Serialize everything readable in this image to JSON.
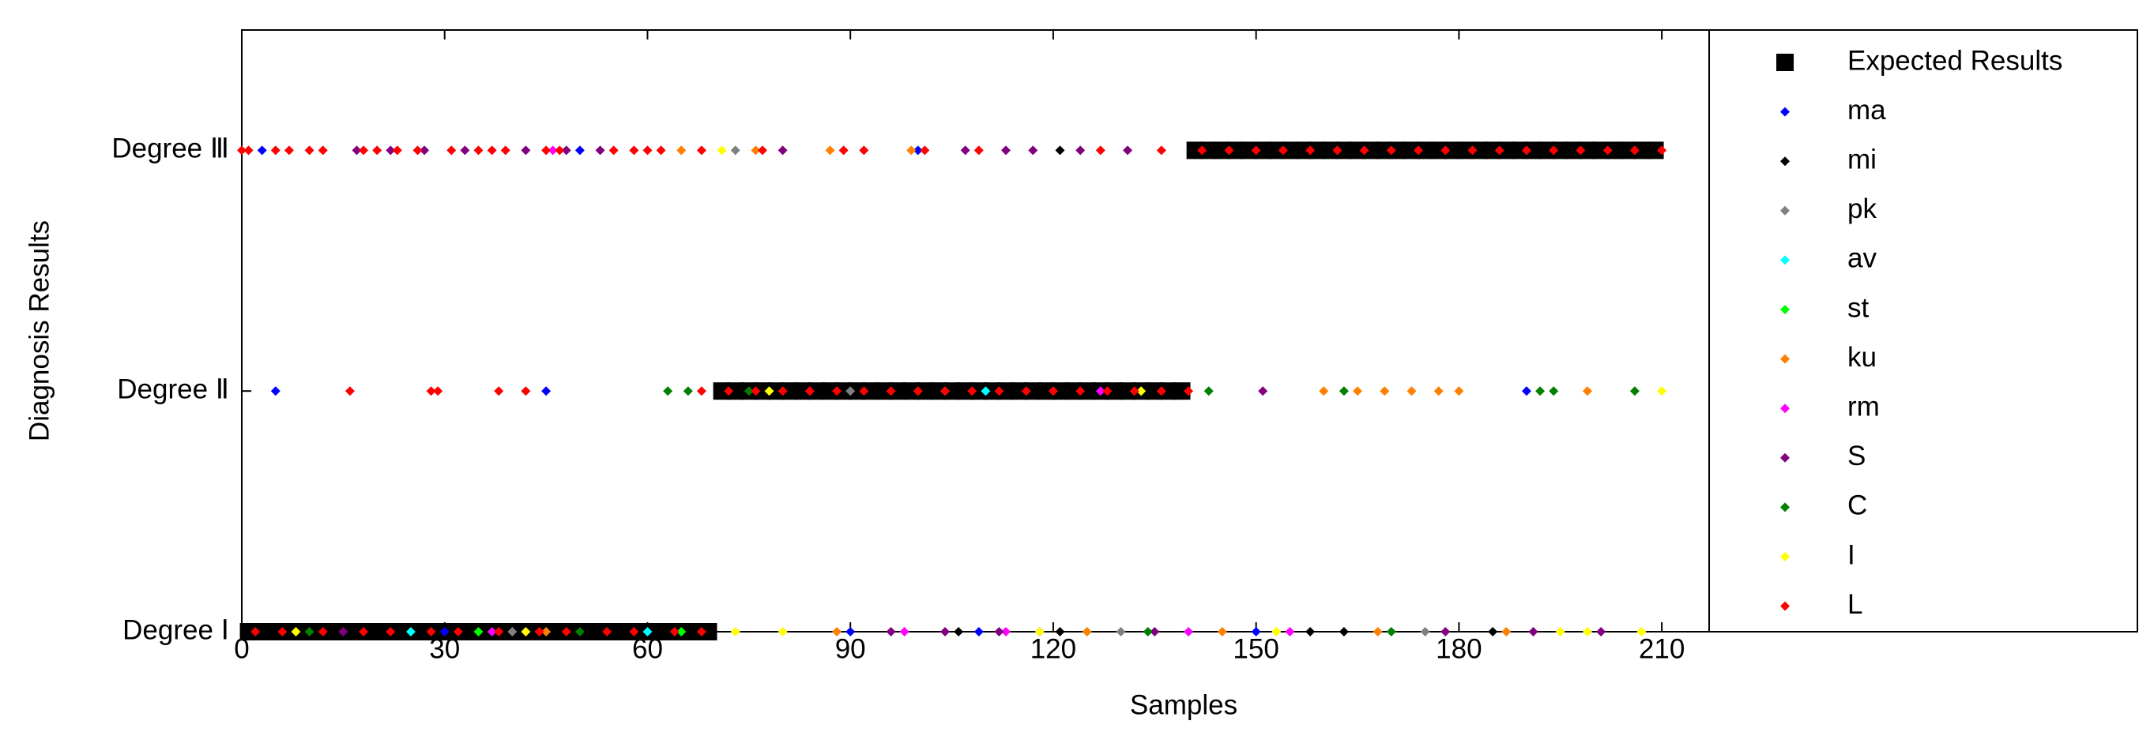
{
  "chart_data": {
    "type": "scatter",
    "xlabel": "Samples",
    "ylabel": "Diagnosis Results",
    "xlim": [
      0,
      217
    ],
    "xticks": [
      0,
      30,
      60,
      90,
      120,
      150,
      180,
      210
    ],
    "ylim": [
      1,
      3.5
    ],
    "yticks": [
      {
        "value": 1,
        "label": "Degree Ⅰ"
      },
      {
        "value": 2,
        "label": "Degree Ⅱ"
      },
      {
        "value": 3,
        "label": "Degree Ⅲ"
      }
    ],
    "legend": "outside-right",
    "series": [
      {
        "name": "Expected Results",
        "color": "#000000",
        "marker": "square",
        "x": [
          1,
          3,
          5,
          7,
          9,
          11,
          13,
          15,
          17,
          19,
          21,
          23,
          25,
          27,
          29,
          31,
          33,
          35,
          37,
          39,
          41,
          43,
          45,
          47,
          49,
          51,
          53,
          55,
          57,
          59,
          61,
          63,
          65,
          67,
          69,
          71,
          73,
          75,
          77,
          79,
          81,
          83,
          85,
          87,
          89,
          91,
          93,
          95,
          97,
          99,
          101,
          103,
          105,
          107,
          109,
          111,
          113,
          115,
          117,
          119,
          121,
          123,
          125,
          127,
          129,
          131,
          133,
          135,
          137,
          139,
          141,
          143,
          145,
          147,
          149,
          151,
          153,
          155,
          157,
          159,
          161,
          163,
          165,
          167,
          169,
          171,
          173,
          175,
          177,
          179,
          181,
          183,
          185,
          187,
          189,
          191,
          193,
          195,
          197,
          199,
          201,
          203,
          205,
          207,
          209
        ],
        "values": [
          1,
          1,
          1,
          1,
          1,
          1,
          1,
          1,
          1,
          1,
          1,
          1,
          1,
          1,
          1,
          1,
          1,
          1,
          1,
          1,
          1,
          1,
          1,
          1,
          1,
          1,
          1,
          1,
          1,
          1,
          1,
          1,
          1,
          1,
          1,
          2,
          2,
          2,
          2,
          2,
          2,
          2,
          2,
          2,
          2,
          2,
          2,
          2,
          2,
          2,
          2,
          2,
          2,
          2,
          2,
          2,
          2,
          2,
          2,
          2,
          2,
          2,
          2,
          2,
          2,
          2,
          2,
          2,
          2,
          2,
          3,
          3,
          3,
          3,
          3,
          3,
          3,
          3,
          3,
          3,
          3,
          3,
          3,
          3,
          3,
          3,
          3,
          3,
          3,
          3,
          3,
          3,
          3,
          3,
          3,
          3,
          3,
          3,
          3,
          3,
          3,
          3,
          3,
          3,
          3
        ]
      },
      {
        "name": "ma",
        "color": "#0000ff",
        "marker": "diamond",
        "x": [
          5,
          45,
          3,
          50,
          90,
          109,
          118,
          190,
          30,
          100,
          150
        ],
        "values": [
          2,
          2,
          3,
          3,
          1,
          1,
          1,
          2,
          1,
          3,
          1
        ]
      },
      {
        "name": "mi",
        "color": "#000000",
        "marker": "diamond",
        "x": [
          106,
          121,
          121,
          158,
          163,
          185,
          20,
          95,
          55
        ],
        "values": [
          1,
          1,
          3,
          1,
          1,
          1,
          1,
          2,
          1
        ]
      },
      {
        "name": "pk",
        "color": "#808080",
        "marker": "diamond",
        "x": [
          73,
          130,
          90,
          40,
          175
        ],
        "values": [
          3,
          1,
          2,
          1,
          1
        ]
      },
      {
        "name": "av",
        "color": "#00ffff",
        "marker": "diamond",
        "x": [
          25,
          110,
          60,
          140
        ],
        "values": [
          1,
          2,
          1,
          1
        ]
      },
      {
        "name": "st",
        "color": "#00ff00",
        "marker": "diamond",
        "x": [
          35,
          100,
          125,
          65
        ],
        "values": [
          1,
          2,
          1,
          1
        ]
      },
      {
        "name": "ku",
        "color": "#ff8000",
        "marker": "diamond",
        "x": [
          65,
          76,
          87,
          99,
          160,
          165,
          169,
          173,
          177,
          180,
          199,
          88,
          125,
          145,
          168,
          187,
          45
        ],
        "values": [
          3,
          3,
          3,
          3,
          2,
          2,
          2,
          2,
          2,
          2,
          2,
          1,
          1,
          1,
          1,
          1,
          1
        ]
      },
      {
        "name": "rm",
        "color": "#ff00ff",
        "marker": "diamond",
        "x": [
          37,
          84,
          127,
          98,
          113,
          140,
          155,
          46
        ],
        "values": [
          1,
          2,
          2,
          1,
          1,
          1,
          1,
          3
        ]
      },
      {
        "name": "S",
        "color": "#800080",
        "marker": "diamond",
        "x": [
          17,
          22,
          27,
          33,
          42,
          48,
          53,
          80,
          107,
          113,
          117,
          124,
          131,
          151,
          96,
          104,
          112,
          135,
          178,
          191,
          201,
          15
        ],
        "values": [
          3,
          3,
          3,
          3,
          3,
          3,
          3,
          3,
          3,
          3,
          3,
          3,
          3,
          2,
          1,
          1,
          1,
          1,
          1,
          1,
          1,
          1
        ]
      },
      {
        "name": "C",
        "color": "#008000",
        "marker": "diamond",
        "x": [
          63,
          66,
          143,
          163,
          192,
          194,
          206,
          75,
          120,
          134,
          170,
          10,
          50
        ],
        "values": [
          2,
          2,
          2,
          2,
          2,
          2,
          2,
          2,
          2,
          1,
          1,
          1,
          1
        ]
      },
      {
        "name": "I",
        "color": "#ffff00",
        "marker": "diamond",
        "x": [
          71,
          210,
          78,
          104,
          133,
          73,
          80,
          118,
          153,
          195,
          199,
          207,
          8,
          42
        ],
        "values": [
          3,
          2,
          2,
          2,
          2,
          1,
          1,
          1,
          1,
          1,
          1,
          1,
          1,
          1
        ]
      },
      {
        "name": "L",
        "color": "#ff0000",
        "marker": "diamond",
        "x": [
          0,
          1,
          5,
          7,
          10,
          12,
          18,
          20,
          23,
          26,
          31,
          35,
          37,
          39,
          45,
          47,
          55,
          58,
          60,
          62,
          68,
          77,
          89,
          92,
          101,
          109,
          127,
          136,
          142,
          146,
          150,
          154,
          158,
          162,
          166,
          170,
          174,
          178,
          182,
          186,
          190,
          194,
          198,
          202,
          206,
          210,
          16,
          28,
          29,
          38,
          42,
          68,
          72,
          76,
          80,
          84,
          88,
          92,
          96,
          100,
          104,
          108,
          112,
          116,
          120,
          124,
          128,
          132,
          136,
          140,
          2,
          6,
          12,
          18,
          22,
          28,
          32,
          38,
          44,
          48,
          54,
          58,
          64,
          68
        ],
        "values": [
          3,
          3,
          3,
          3,
          3,
          3,
          3,
          3,
          3,
          3,
          3,
          3,
          3,
          3,
          3,
          3,
          3,
          3,
          3,
          3,
          3,
          3,
          3,
          3,
          3,
          3,
          3,
          3,
          3,
          3,
          3,
          3,
          3,
          3,
          3,
          3,
          3,
          3,
          3,
          3,
          3,
          3,
          3,
          3,
          3,
          3,
          2,
          2,
          2,
          2,
          2,
          2,
          2,
          2,
          2,
          2,
          2,
          2,
          2,
          2,
          2,
          2,
          2,
          2,
          2,
          2,
          2,
          2,
          2,
          2,
          1,
          1,
          1,
          1,
          1,
          1,
          1,
          1,
          1,
          1,
          1,
          1,
          1,
          1
        ]
      }
    ]
  }
}
